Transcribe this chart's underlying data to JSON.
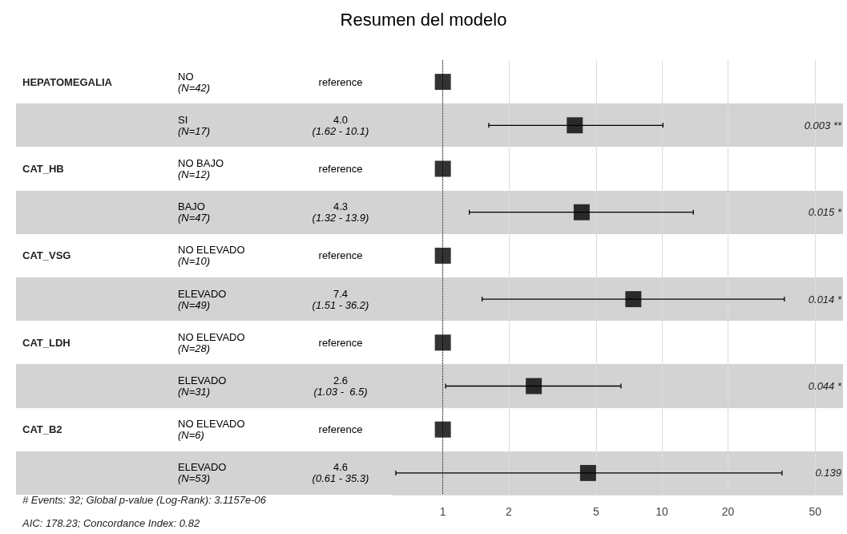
{
  "chart_data": {
    "type": "scatter",
    "title": "Resumen del modelo",
    "categories": [
      null,
      null,
      null,
      null,
      null,
      null,
      null,
      null,
      null,
      null
    ],
    "orientation": "horizontal",
    "series": [
      {
        "color": "#000000",
        "values": [
          1,
          4.0,
          1,
          4.3,
          1,
          7.4,
          1,
          2.6,
          1,
          4.6
        ],
        "errors": [
          null,
          [
            1.62,
            10.1
          ],
          null,
          [
            1.32,
            13.9
          ],
          null,
          [
            1.51,
            36.2
          ],
          null,
          [
            1.03,
            6.5
          ],
          null,
          [
            0.61,
            35.3
          ]
        ]
      }
    ],
    "xlim": [
      0.59,
      67
    ],
    "xticks": [
      1,
      2,
      5,
      10,
      20,
      50
    ],
    "log": "x",
    "grid": "x",
    "marker": "square",
    "ref_lines": [
      {
        "axis": "x",
        "value": 1,
        "label": null,
        "line_style": "dotted",
        "color": "#000000"
      }
    ],
    "annotations": [
      "HEPATOMEGALIA",
      "CAT_HB",
      "CAT_VSG",
      "CAT_LDH",
      "CAT_B2",
      "NO\n(N=42)",
      "SI\n(N=17)",
      "NO BAJO\n(N=12)",
      "BAJO\n(N=47)",
      "NO ELEVADO\n(N=10)",
      "ELEVADO\n(N=49)",
      "NO ELEVADO\n(N=28)",
      "ELEVADO\n(N=31)",
      "NO ELEVADO\n(N=6)",
      "ELEVADO\n(N=53)",
      "reference",
      "4.0\n(1.62 - 10.1)",
      "reference",
      "4.3\n(1.32 - 13.9)",
      "reference",
      "7.4\n(1.51 - 36.2)",
      "reference",
      "2.6\n(1.03 -  6.5)",
      "reference",
      "4.6\n(0.61 - 35.3)",
      "0.003 **",
      "0.015 *",
      "0.014 *",
      "0.044 *",
      "0.139",
      "# Events: 32; Global p-value (Log-Rank): 3.1157e-06",
      "AIC: 178.23; Concordance Index: 0.82"
    ]
  }
}
